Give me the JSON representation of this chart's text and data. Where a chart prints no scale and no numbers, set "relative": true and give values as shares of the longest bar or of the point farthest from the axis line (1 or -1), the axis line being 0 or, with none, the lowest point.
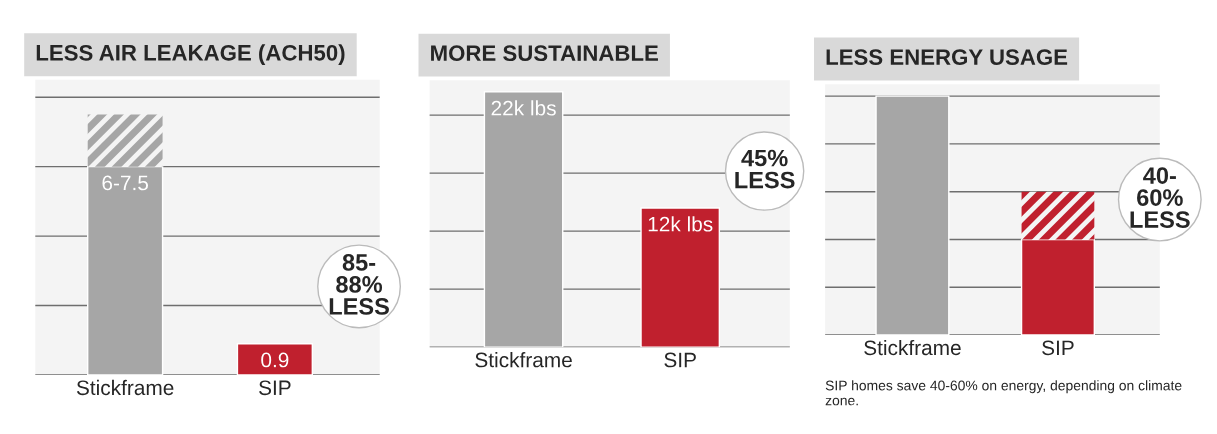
{
  "chart_data": [
    {
      "type": "bar",
      "title": "LESS AIR LEAKAGE (ACH50)",
      "categories": [
        "Stickframe",
        "SIP"
      ],
      "stacked": true,
      "series": [
        {
          "colors": [
            "#a6a6a6",
            "#c0202e"
          ],
          "values": [
            6,
            0.9
          ],
          "value_labels": [
            "6-7.5",
            "0.9"
          ]
        },
        {
          "colors": [
            "#a6a6a6",
            "#c0202e"
          ],
          "values": [
            1.5,
            null
          ]
        }
      ],
      "ylim": [
        0,
        8.5
      ],
      "yticks": [
        {
          "value": 0,
          "label": null
        },
        {
          "value": 2,
          "label": null
        },
        {
          "value": 4,
          "label": null
        },
        {
          "value": 6,
          "label": null
        },
        {
          "value": 8,
          "label": null
        }
      ],
      "grid": "y",
      "tick_labels": "x",
      "annotations": [
        "85-\n88%\nLESS"
      ]
    },
    {
      "type": "bar",
      "title": "MORE SUSTAINABLE",
      "categories": [
        "Stickframe",
        "SIP"
      ],
      "series": [
        {
          "colors": [
            "#a6a6a6",
            "#c0202e"
          ],
          "values": [
            22,
            12
          ],
          "value_labels": [
            "22k lbs",
            "12k lbs"
          ]
        }
      ],
      "ylim": [
        0,
        23
      ],
      "yticks": [
        {
          "value": 0,
          "label": null
        },
        {
          "value": 5,
          "label": null
        },
        {
          "value": 10,
          "label": null
        },
        {
          "value": 15,
          "label": null
        },
        {
          "value": 20,
          "label": null
        }
      ],
      "grid": "y",
      "tick_labels": "x",
      "annotations": [
        "45%\nLESS"
      ]
    },
    {
      "type": "bar",
      "title": "LESS ENERGY USAGE",
      "categories": [
        "Stickframe",
        "SIP"
      ],
      "stacked": true,
      "relative": true,
      "series": [
        {
          "colors": [
            "#a6a6a6",
            "#c0202e"
          ],
          "values": [
            1,
            0.4
          ]
        },
        {
          "colors": [
            "#a6a6a6",
            "#c0202e"
          ],
          "values": [
            null,
            0.2
          ]
        }
      ],
      "grid": "y",
      "tick_labels": "x",
      "annotations": [
        "40-\n60%\nLESS",
        "SIP homes save 40-60% on energy, depending on climate zone."
      ]
    }
  ]
}
